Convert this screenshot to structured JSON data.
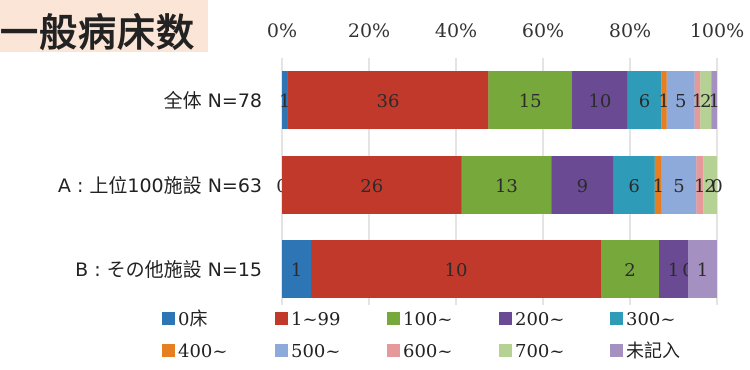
{
  "page": {
    "title": "一般病床数"
  },
  "colors": {
    "title_bg": "#fbe5d6",
    "grid": "#c9c9c9"
  },
  "chart_data": {
    "type": "bar",
    "orientation": "horizontal",
    "stacked": "percent",
    "xlim": [
      0,
      100
    ],
    "x_ticks": [
      "0%",
      "20%",
      "40%",
      "60%",
      "80%",
      "100%"
    ],
    "grid": true,
    "legend_position": "bottom",
    "categories": [
      "全体 N=78",
      "A : 上位100施設 N=63",
      "B : その他施設 N=15"
    ],
    "series": [
      {
        "name": "0床",
        "color": "#2e75b6",
        "values": [
          1,
          0,
          1
        ],
        "labels": [
          "1",
          "0",
          "1"
        ]
      },
      {
        "name": "1~99",
        "color": "#c0392b",
        "values": [
          36,
          26,
          10
        ],
        "labels": [
          "36",
          "26",
          "10"
        ]
      },
      {
        "name": "100~",
        "color": "#77a83c",
        "values": [
          15,
          13,
          2
        ],
        "labels": [
          "15",
          "13",
          "2"
        ]
      },
      {
        "name": "200~",
        "color": "#6a4a93",
        "values": [
          10,
          9,
          1
        ],
        "labels": [
          "10",
          "9",
          "1"
        ]
      },
      {
        "name": "300~",
        "color": "#2e9bb8",
        "values": [
          6,
          6,
          0
        ],
        "labels": [
          "6",
          "6",
          "0"
        ]
      },
      {
        "name": "400~",
        "color": "#e67e22",
        "values": [
          1,
          1,
          0
        ],
        "labels": [
          "1",
          "1",
          ""
        ]
      },
      {
        "name": "500~",
        "color": "#8eaadb",
        "values": [
          5,
          5,
          0
        ],
        "labels": [
          "5",
          "5",
          ""
        ]
      },
      {
        "name": "600~",
        "color": "#e6999a",
        "values": [
          1,
          1,
          0
        ],
        "labels": [
          "1",
          "1",
          ""
        ]
      },
      {
        "name": "700~",
        "color": "#b5d193",
        "values": [
          2,
          2,
          0
        ],
        "labels": [
          "2",
          "2",
          ""
        ]
      },
      {
        "name": "未記入",
        "color": "#a491c1",
        "values": [
          1,
          0,
          1
        ],
        "labels": [
          "1",
          "0",
          "1"
        ]
      }
    ]
  }
}
